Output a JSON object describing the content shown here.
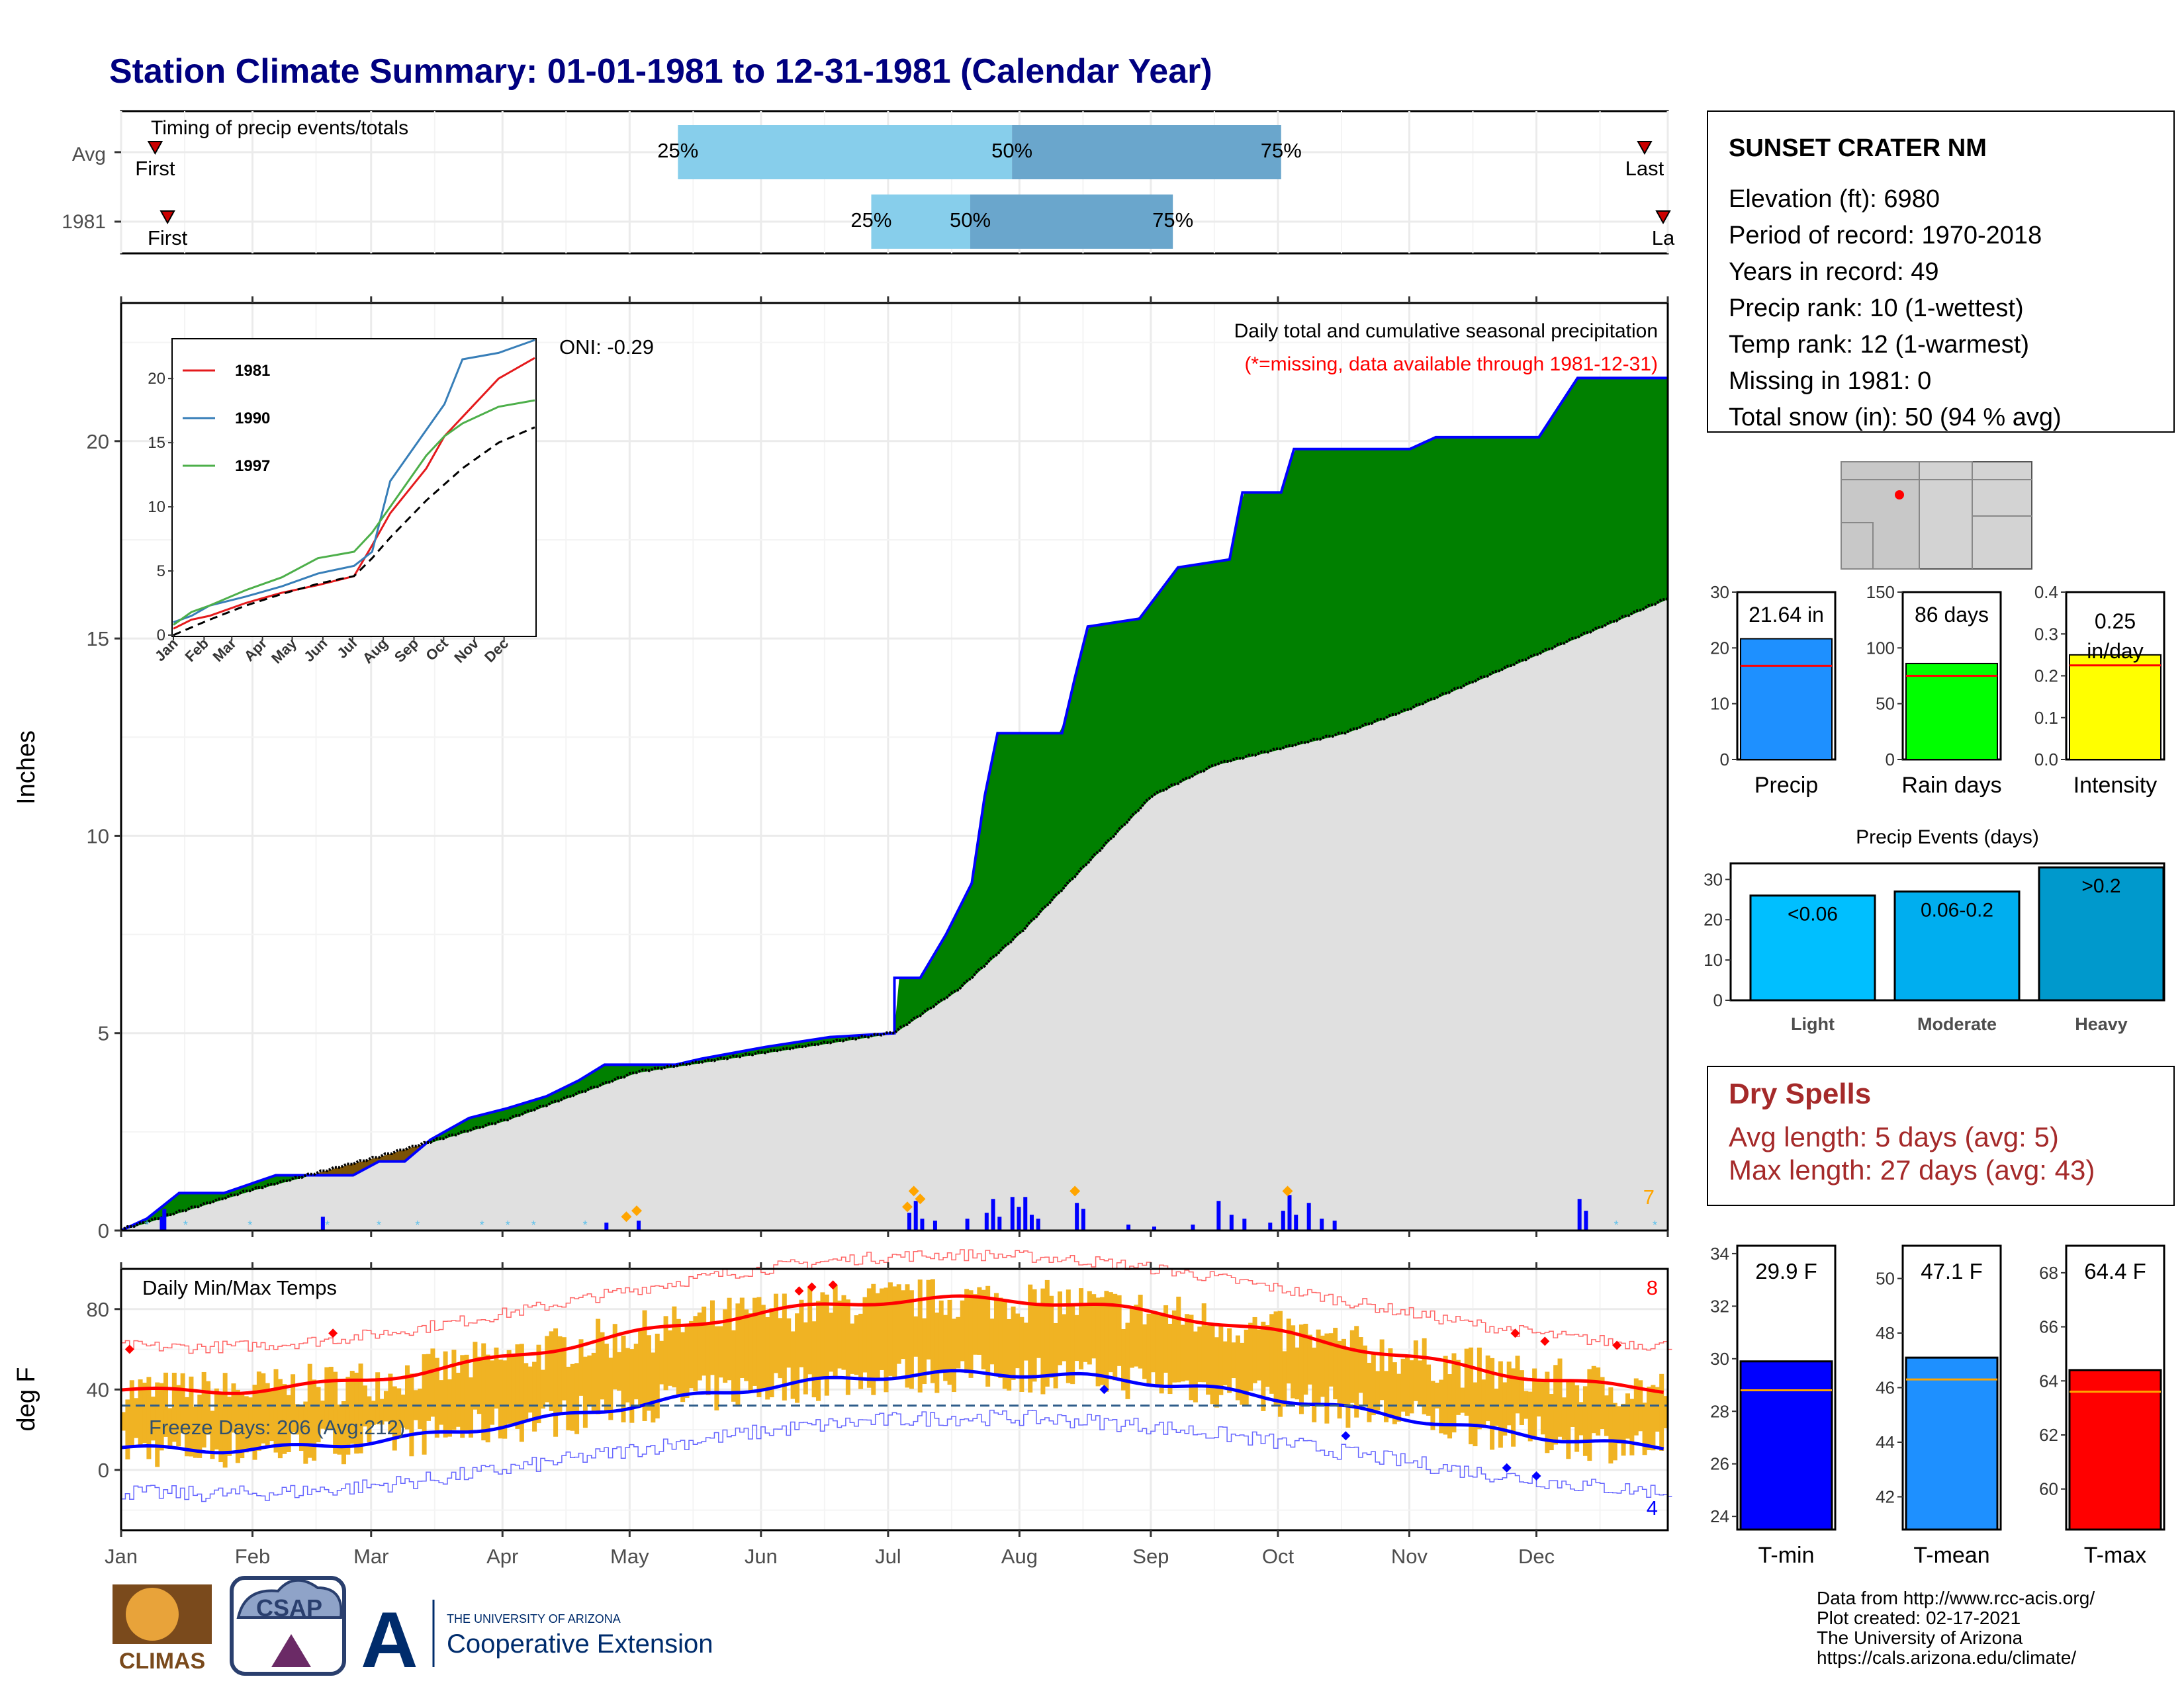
{
  "title": "Station Climate Summary: 01-01-1981 to 12-31-1981 (Calendar Year)",
  "months": [
    "Jan",
    "Feb",
    "Mar",
    "Apr",
    "May",
    "Jun",
    "Jul",
    "Aug",
    "Sep",
    "Oct",
    "Nov",
    "Dec"
  ],
  "timing": {
    "label": "Timing of precip events/totals",
    "rows": [
      {
        "name": "Avg",
        "first": "First",
        "last": "Last",
        "q25": 0.36,
        "q50": 0.576,
        "q75": 0.75,
        "first_x": 0.022,
        "last_x": 0.985
      },
      {
        "name": "1981",
        "first": "First",
        "last": "La",
        "q25": 0.485,
        "q50": 0.549,
        "q75": 0.68,
        "first_x": 0.03,
        "last_x": 0.997
      }
    ],
    "pct_labels": [
      "25%",
      "50%",
      "75%"
    ]
  },
  "precip": {
    "ylabel": "Inches",
    "yticks": [
      0,
      5,
      10,
      15,
      20
    ],
    "title_line1": "Daily total and cumulative seasonal precipitation",
    "title_line2": "(*=missing, data available through 1981-12-31)",
    "oni": "ONI: -0.29",
    "corner_count": "7",
    "cum_obs": [
      [
        0,
        0
      ],
      [
        0.02,
        0.3
      ],
      [
        0.045,
        0.95
      ],
      [
        0.08,
        0.95
      ],
      [
        0.12,
        1.4
      ],
      [
        0.18,
        1.4
      ],
      [
        0.2,
        1.75
      ],
      [
        0.22,
        1.75
      ],
      [
        0.24,
        2.3
      ],
      [
        0.27,
        2.85
      ],
      [
        0.3,
        3.1
      ],
      [
        0.33,
        3.4
      ],
      [
        0.355,
        3.8
      ],
      [
        0.375,
        4.2
      ],
      [
        0.43,
        4.2
      ],
      [
        0.45,
        4.35
      ],
      [
        0.5,
        4.65
      ],
      [
        0.55,
        4.9
      ],
      [
        0.6,
        5.0
      ],
      [
        0.6,
        6.4
      ],
      [
        0.62,
        6.4
      ],
      [
        0.64,
        7.5
      ],
      [
        0.66,
        8.8
      ],
      [
        0.67,
        11
      ],
      [
        0.68,
        12.6
      ],
      [
        0.73,
        12.6
      ],
      [
        0.74,
        14
      ],
      [
        0.75,
        15.3
      ],
      [
        0.79,
        15.5
      ],
      [
        0.82,
        16.8
      ],
      [
        0.86,
        17.0
      ],
      [
        0.87,
        18.7
      ],
      [
        0.9,
        18.7
      ],
      [
        0.91,
        19.8
      ],
      [
        1.0,
        19.8
      ],
      [
        1.02,
        20.1
      ],
      [
        1.1,
        20.1
      ],
      [
        1.13,
        21.6
      ],
      [
        1.2,
        21.6
      ]
    ],
    "cum_avg": [
      [
        0,
        0
      ],
      [
        0.05,
        0.5
      ],
      [
        0.1,
        1.0
      ],
      [
        0.2,
        1.85
      ],
      [
        0.3,
        2.8
      ],
      [
        0.4,
        4.0
      ],
      [
        0.5,
        4.5
      ],
      [
        0.6,
        5.0
      ],
      [
        0.65,
        6.1
      ],
      [
        0.7,
        7.6
      ],
      [
        0.75,
        9.3
      ],
      [
        0.8,
        11.0
      ],
      [
        0.85,
        11.8
      ],
      [
        0.9,
        12.2
      ],
      [
        0.95,
        12.6
      ],
      [
        1.0,
        13.2
      ],
      [
        1.05,
        13.9
      ],
      [
        1.1,
        14.6
      ],
      [
        1.15,
        15.3
      ],
      [
        1.2,
        16.0
      ]
    ],
    "daily_bars": [
      [
        0.03,
        0.35
      ],
      [
        0.032,
        0.55
      ],
      [
        0.155,
        0.35
      ],
      [
        0.375,
        0.2
      ],
      [
        0.4,
        0.25
      ],
      [
        0.61,
        0.45
      ],
      [
        0.615,
        0.75
      ],
      [
        0.62,
        0.3
      ],
      [
        0.63,
        0.25
      ],
      [
        0.655,
        0.3
      ],
      [
        0.67,
        0.45
      ],
      [
        0.675,
        0.8
      ],
      [
        0.68,
        0.35
      ],
      [
        0.69,
        0.85
      ],
      [
        0.695,
        0.6
      ],
      [
        0.7,
        0.85
      ],
      [
        0.705,
        0.4
      ],
      [
        0.71,
        0.3
      ],
      [
        0.74,
        0.7
      ],
      [
        0.745,
        0.55
      ],
      [
        0.78,
        0.15
      ],
      [
        0.8,
        0.1
      ],
      [
        0.83,
        0.15
      ],
      [
        0.85,
        0.75
      ],
      [
        0.86,
        0.4
      ],
      [
        0.87,
        0.3
      ],
      [
        0.89,
        0.2
      ],
      [
        0.9,
        0.5
      ],
      [
        0.905,
        0.9
      ],
      [
        0.91,
        0.4
      ],
      [
        0.92,
        0.7
      ],
      [
        0.93,
        0.3
      ],
      [
        0.94,
        0.25
      ],
      [
        1.13,
        0.8
      ],
      [
        1.135,
        0.5
      ]
    ],
    "inset": {
      "yticks": [
        0,
        5,
        10,
        15,
        20
      ],
      "legend": [
        "1981",
        "1990",
        "1997"
      ],
      "colors": [
        "#e41a1c",
        "#377eb8",
        "#4daf4a"
      ]
    }
  },
  "temps": {
    "ylabel": "deg F",
    "yticks": [
      0,
      40,
      80
    ],
    "title": "Daily Min/Max Temps",
    "freeze": "Freeze Days: 206 (Avg:212)",
    "count_top": "8",
    "count_bottom": "4",
    "freeze_line": 32
  },
  "station": {
    "name": "SUNSET CRATER NM",
    "lines": [
      "Elevation (ft): 6980",
      "Period of record: 1970-2018",
      "Years in record: 49",
      "Precip rank: 10 (1-wettest)",
      "Temp rank: 12 (1-warmest)",
      "Missing in 1981: 0",
      "Total snow (in): 50 (94 % avg)"
    ]
  },
  "summary_bars": [
    {
      "label": "Precip",
      "value_label": "21.64 in",
      "value": 21.64,
      "avg": 16.8,
      "max": 30,
      "ticks": [
        0,
        10,
        20,
        30
      ],
      "color": "#1e90ff"
    },
    {
      "label": "Rain days",
      "value_label": "86 days",
      "value": 86,
      "avg": 75,
      "max": 150,
      "ticks": [
        0,
        50,
        100,
        150
      ],
      "color": "#00ff00"
    },
    {
      "label": "Intensity",
      "value_label_1": "0.25",
      "value_label_2": "in/day",
      "value": 0.25,
      "avg": 0.225,
      "max": 0.4,
      "ticks": [
        "0.0",
        "0.1",
        "0.2",
        "0.3",
        "0.4"
      ],
      "color": "#ffff00"
    }
  ],
  "events": {
    "title": "Precip Events (days)",
    "ticks": [
      0,
      10,
      20,
      30
    ],
    "bars": [
      {
        "label": "Light",
        "range": "<0.06",
        "value": 26,
        "color": "#00bfff"
      },
      {
        "label": "Moderate",
        "range": "0.06-0.2",
        "value": 27,
        "color": "#00aeef"
      },
      {
        "label": "Heavy",
        "range": ">0.2",
        "value": 33,
        "color": "#0099cc"
      }
    ]
  },
  "dry": {
    "title": "Dry Spells",
    "line1": "Avg length: 5 days (avg: 5)",
    "line2": "Max length: 27 days (avg: 43)"
  },
  "temp_bars": [
    {
      "label": "T-min",
      "value_label": "29.9 F",
      "value": 29.9,
      "avg": 28.8,
      "min": 23.5,
      "max": 34.3,
      "ticks": [
        24,
        26,
        28,
        30,
        32,
        34
      ],
      "color": "#0000ff"
    },
    {
      "label": "T-mean",
      "value_label": "47.1 F",
      "value": 47.1,
      "avg": 46.3,
      "min": 40.8,
      "max": 51.2,
      "ticks": [
        42,
        44,
        46,
        48,
        50
      ],
      "color": "#1e90ff"
    },
    {
      "label": "T-max",
      "value_label": "64.4 F",
      "value": 64.4,
      "avg": 63.6,
      "min": 58.5,
      "max": 69,
      "ticks": [
        60,
        62,
        64,
        66,
        68
      ],
      "color": "#ff0000"
    }
  ],
  "credits": [
    "Data from http://www.rcc-acis.org/",
    "Plot created: 02-17-2021",
    "The University of Arizona",
    "https://cals.arizona.edu/climate/"
  ],
  "logos": {
    "climas": "CLIMAS",
    "csap": "CSAP",
    "ua_small": "THE UNIVERSITY OF ARIZONA",
    "ua_big": "Cooperative Extension"
  }
}
